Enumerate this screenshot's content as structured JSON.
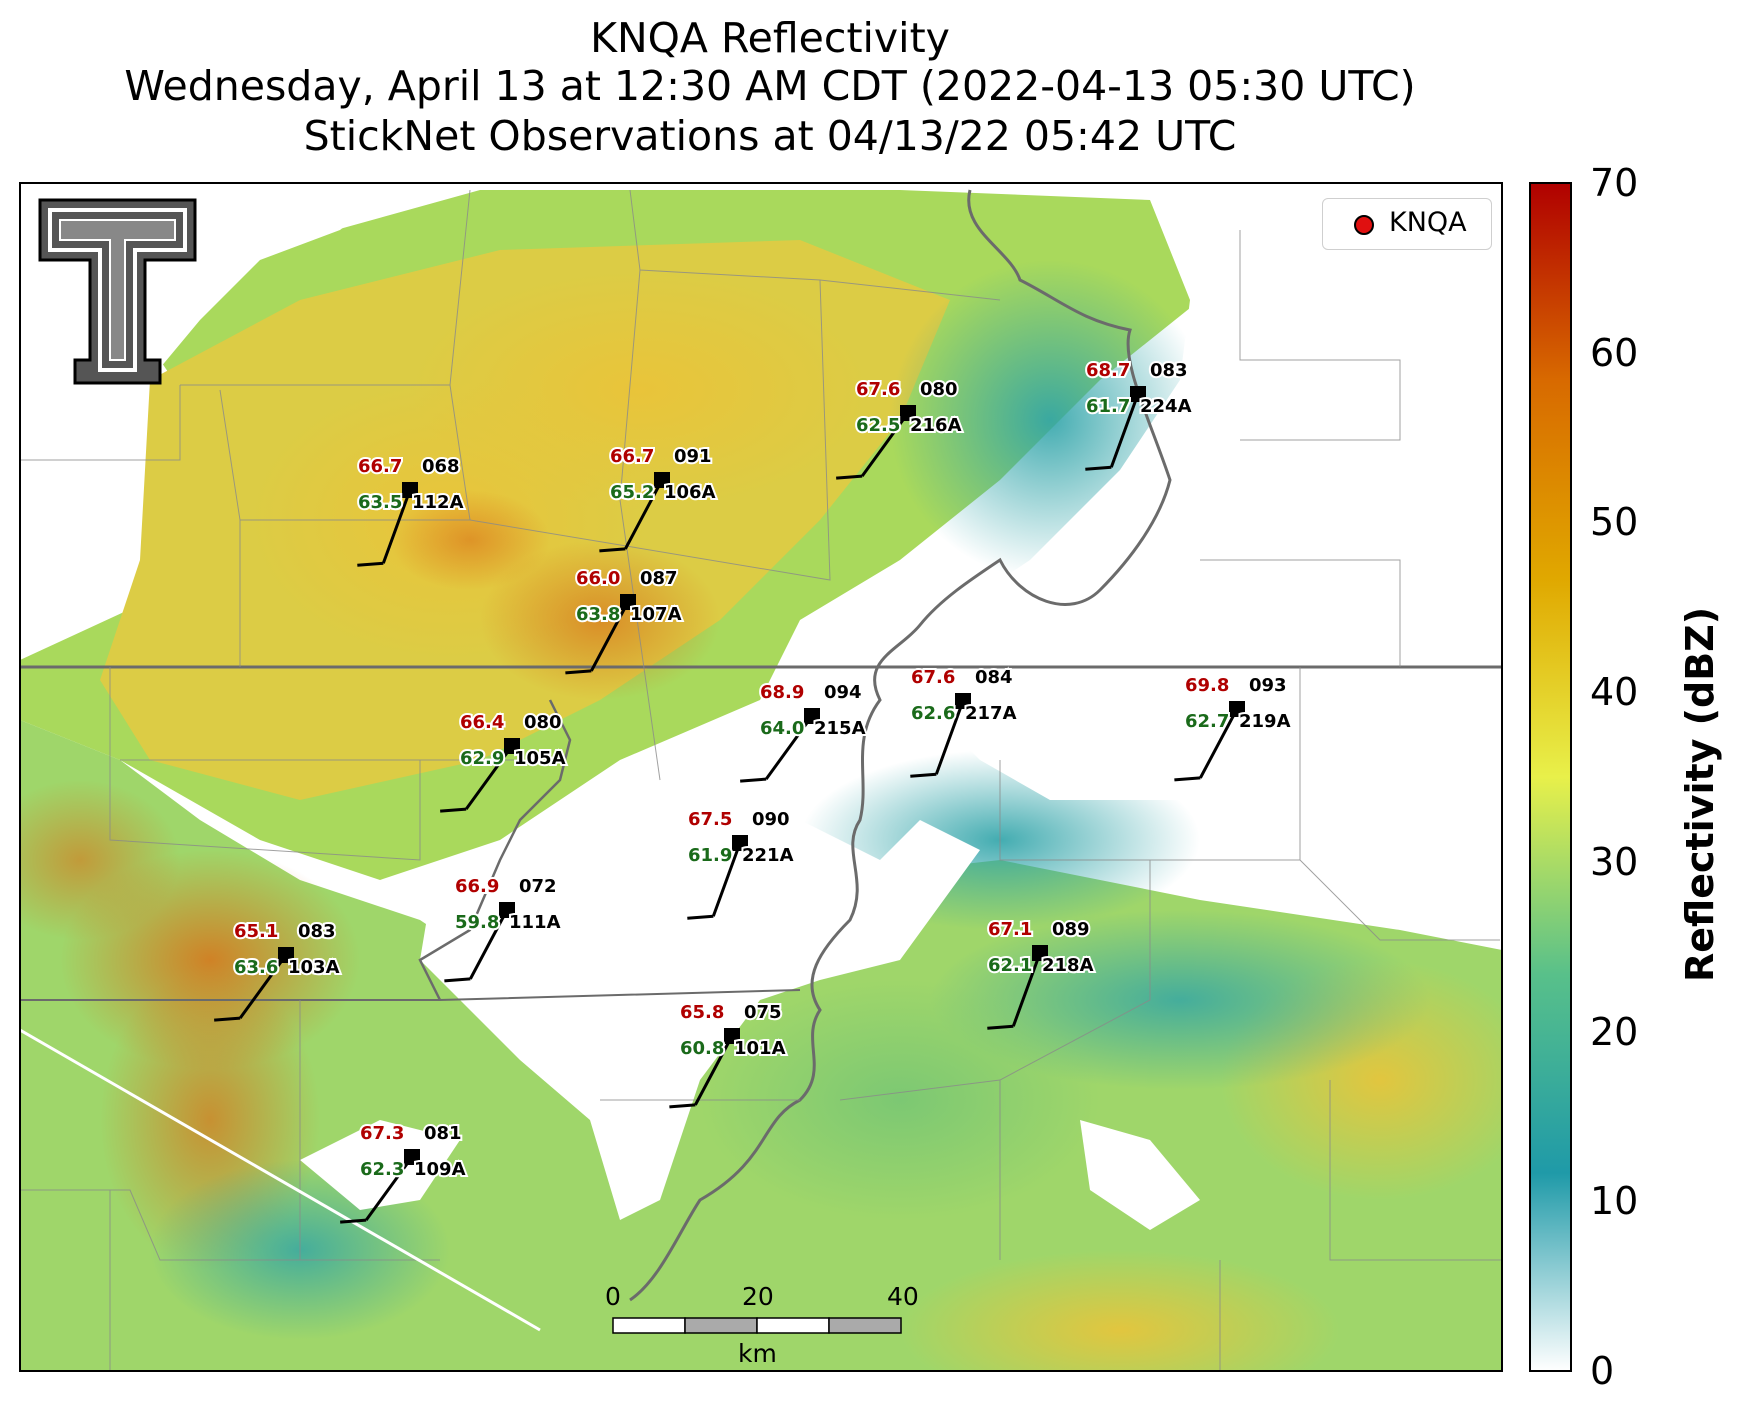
{
  "title": {
    "line1": "KNQA Reflectivity",
    "line2": "Wednesday, April 13 at 12:30 AM CDT (2022-04-13 05:30 UTC)",
    "line3": "StickNet Observations at 04/13/22 05:42 UTC"
  },
  "legend": {
    "label": "KNQA",
    "marker_color": "#e01010"
  },
  "colorbar": {
    "label": "Reflectivity (dBZ)",
    "ticks": [
      "0",
      "10",
      "20",
      "30",
      "40",
      "50",
      "60",
      "70"
    ],
    "min": 0,
    "max": 70,
    "stops": [
      "#ffffff",
      "#1f9aa8",
      "#58c08a",
      "#e8f04a",
      "#e0a800",
      "#d86a00",
      "#b00000"
    ]
  },
  "scale_bar": {
    "labels": [
      "0",
      "20",
      "40"
    ],
    "unit": "km"
  },
  "logo": {
    "name": "Texas Tech Double T"
  },
  "stations": [
    {
      "id": "112A",
      "temp": "66.7",
      "dew": "63.5",
      "dir": "068"
    },
    {
      "id": "106A",
      "temp": "66.7",
      "dew": "65.2",
      "dir": "091"
    },
    {
      "id": "216A",
      "temp": "67.6",
      "dew": "62.5",
      "dir": "080"
    },
    {
      "id": "224A",
      "temp": "68.7",
      "dew": "61.7",
      "dir": "083"
    },
    {
      "id": "107A",
      "temp": "66.0",
      "dew": "63.8",
      "dir": "087"
    },
    {
      "id": "215A",
      "temp": "68.9",
      "dew": "64.0",
      "dir": "094"
    },
    {
      "id": "217A",
      "temp": "67.6",
      "dew": "62.6",
      "dir": "084"
    },
    {
      "id": "219A",
      "temp": "69.8",
      "dew": "62.7",
      "dir": "093"
    },
    {
      "id": "105A",
      "temp": "66.4",
      "dew": "62.9",
      "dir": "080"
    },
    {
      "id": "221A",
      "temp": "67.5",
      "dew": "61.9",
      "dir": "090"
    },
    {
      "id": "111A",
      "temp": "66.9",
      "dew": "59.8",
      "dir": "072"
    },
    {
      "id": "103A",
      "temp": "65.1",
      "dew": "63.6",
      "dir": "083"
    },
    {
      "id": "218A",
      "temp": "67.1",
      "dew": "62.1",
      "dir": "089"
    },
    {
      "id": "101A",
      "temp": "65.8",
      "dew": "60.8",
      "dir": "075"
    },
    {
      "id": "109A",
      "temp": "67.3",
      "dew": "62.3",
      "dir": "081"
    }
  ]
}
